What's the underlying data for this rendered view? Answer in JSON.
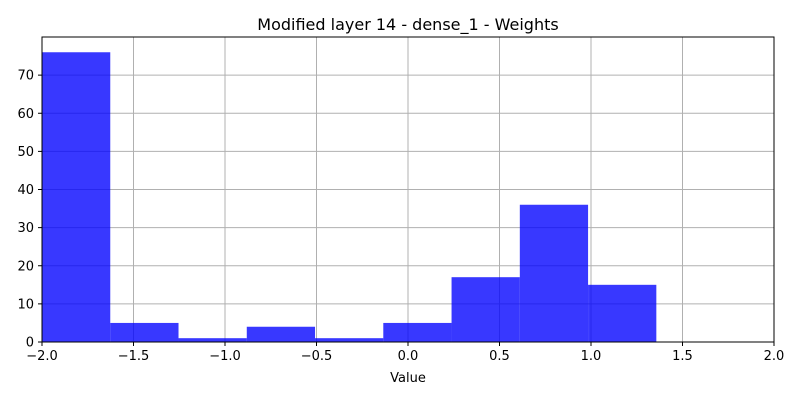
{
  "chart_data": {
    "type": "bar",
    "title": "Modified layer 14 - dense_1 - Weights",
    "xlabel": "Value",
    "ylabel": "",
    "xlim": [
      -2.0,
      2.0
    ],
    "ylim": [
      0,
      80
    ],
    "grid": true,
    "bar_color": "#0000ff",
    "bar_opacity": 0.78,
    "bins": [
      {
        "start": -2.0,
        "end": -1.627,
        "count": 76
      },
      {
        "start": -1.627,
        "end": -1.254,
        "count": 5
      },
      {
        "start": -1.254,
        "end": -0.881,
        "count": 1
      },
      {
        "start": -0.881,
        "end": -0.508,
        "count": 4
      },
      {
        "start": -0.508,
        "end": -0.135,
        "count": 1
      },
      {
        "start": -0.135,
        "end": 0.238,
        "count": 5
      },
      {
        "start": 0.238,
        "end": 0.611,
        "count": 17
      },
      {
        "start": 0.611,
        "end": 0.984,
        "count": 36
      },
      {
        "start": 0.984,
        "end": 1.357,
        "count": 15
      }
    ],
    "x_ticks": [
      {
        "value": -2.0,
        "label": "−2.0"
      },
      {
        "value": -1.5,
        "label": "−1.5"
      },
      {
        "value": -1.0,
        "label": "−1.0"
      },
      {
        "value": -0.5,
        "label": "−0.5"
      },
      {
        "value": 0.0,
        "label": "0.0"
      },
      {
        "value": 0.5,
        "label": "0.5"
      },
      {
        "value": 1.0,
        "label": "1.0"
      },
      {
        "value": 1.5,
        "label": "1.5"
      },
      {
        "value": 2.0,
        "label": "2.0"
      }
    ],
    "y_ticks": [
      {
        "value": 0,
        "label": "0"
      },
      {
        "value": 10,
        "label": "10"
      },
      {
        "value": 20,
        "label": "20"
      },
      {
        "value": 30,
        "label": "30"
      },
      {
        "value": 40,
        "label": "40"
      },
      {
        "value": 50,
        "label": "50"
      },
      {
        "value": 60,
        "label": "60"
      },
      {
        "value": 70,
        "label": "70"
      }
    ]
  }
}
